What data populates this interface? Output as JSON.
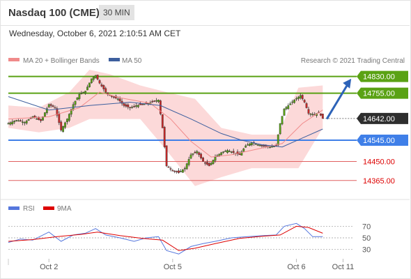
{
  "header": {
    "title": "Nasdaq 100 (CME)",
    "timeframe": "30 MIN",
    "datetime": "Wednesday, October 6, 2021 2:10:51 AM CET"
  },
  "legend": {
    "ma20": "MA 20 + Bollinger Bands",
    "ma50": "MA 50",
    "credit": "Research © 2021 Trading Central"
  },
  "rsi_legend": {
    "rsi": "RSI",
    "ma": "9MA"
  },
  "colors": {
    "green": "#5aa214",
    "blue_support": "#3f7fe8",
    "red_level": "#e06060",
    "current_tag": "#2e2e2e",
    "bollinger_fill": "#fbd2d2",
    "ma50_line": "#3d5f9e",
    "rsi_line": "#5577dd",
    "rsi_ma_line": "#dd0000",
    "arrow": "#2d63b8"
  },
  "chart_data": [
    {
      "type": "candlestick",
      "title": "Nasdaq 100 (CME)",
      "interval": "30 MIN",
      "x_ticks": [
        "Oct 2",
        "Oct 5",
        "Oct 6",
        "Oct 11"
      ],
      "ylim": [
        14330,
        14860
      ],
      "levels": [
        {
          "label": "14830.00",
          "value": 14830,
          "kind": "resistance"
        },
        {
          "label": "14755.00",
          "value": 14755,
          "kind": "resistance"
        },
        {
          "label": "14642.00",
          "value": 14642,
          "kind": "current"
        },
        {
          "label": "14545.00",
          "value": 14545,
          "kind": "support"
        },
        {
          "label": "14450.00",
          "value": 14450,
          "kind": "target"
        },
        {
          "label": "14365.00",
          "value": 14365,
          "kind": "target"
        }
      ],
      "close_path": [
        {
          "t": 0,
          "v": 14620
        },
        {
          "t": 4,
          "v": 14635
        },
        {
          "t": 8,
          "v": 14625
        },
        {
          "t": 12,
          "v": 14650
        },
        {
          "t": 16,
          "v": 14632
        },
        {
          "t": 20,
          "v": 14705
        },
        {
          "t": 23,
          "v": 14690
        },
        {
          "t": 26,
          "v": 14590
        },
        {
          "t": 29,
          "v": 14640
        },
        {
          "t": 32,
          "v": 14705
        },
        {
          "t": 35,
          "v": 14750
        },
        {
          "t": 38,
          "v": 14765
        },
        {
          "t": 41,
          "v": 14820
        },
        {
          "t": 43,
          "v": 14835
        },
        {
          "t": 45,
          "v": 14800
        },
        {
          "t": 48,
          "v": 14760
        },
        {
          "t": 51,
          "v": 14740
        },
        {
          "t": 54,
          "v": 14730
        },
        {
          "t": 57,
          "v": 14700
        },
        {
          "t": 60,
          "v": 14690
        },
        {
          "t": 63,
          "v": 14700
        },
        {
          "t": 66,
          "v": 14705
        },
        {
          "t": 69,
          "v": 14710
        },
        {
          "t": 72,
          "v": 14720
        },
        {
          "t": 74,
          "v": 14725
        },
        {
          "t": 76,
          "v": 14600
        },
        {
          "t": 78,
          "v": 14430
        },
        {
          "t": 81,
          "v": 14410
        },
        {
          "t": 84,
          "v": 14400
        },
        {
          "t": 87,
          "v": 14420
        },
        {
          "t": 90,
          "v": 14480
        },
        {
          "t": 93,
          "v": 14495
        },
        {
          "t": 96,
          "v": 14450
        },
        {
          "t": 99,
          "v": 14430
        },
        {
          "t": 102,
          "v": 14470
        },
        {
          "t": 105,
          "v": 14490
        },
        {
          "t": 108,
          "v": 14500
        },
        {
          "t": 111,
          "v": 14490
        },
        {
          "t": 114,
          "v": 14480
        },
        {
          "t": 117,
          "v": 14520
        },
        {
          "t": 120,
          "v": 14535
        },
        {
          "t": 123,
          "v": 14525
        },
        {
          "t": 126,
          "v": 14520
        },
        {
          "t": 129,
          "v": 14515
        },
        {
          "t": 132,
          "v": 14520
        },
        {
          "t": 134,
          "v": 14620
        },
        {
          "t": 136,
          "v": 14685
        },
        {
          "t": 138,
          "v": 14700
        },
        {
          "t": 141,
          "v": 14725
        },
        {
          "t": 144,
          "v": 14745
        },
        {
          "t": 146,
          "v": 14715
        },
        {
          "t": 148,
          "v": 14665
        },
        {
          "t": 151,
          "v": 14660
        },
        {
          "t": 153,
          "v": 14670
        },
        {
          "t": 155,
          "v": 14642
        }
      ],
      "ma20_path": [
        {
          "t": 0,
          "v": 14640
        },
        {
          "t": 20,
          "v": 14650
        },
        {
          "t": 35,
          "v": 14690
        },
        {
          "t": 45,
          "v": 14760
        },
        {
          "t": 55,
          "v": 14735
        },
        {
          "t": 70,
          "v": 14710
        },
        {
          "t": 80,
          "v": 14640
        },
        {
          "t": 90,
          "v": 14540
        },
        {
          "t": 100,
          "v": 14470
        },
        {
          "t": 110,
          "v": 14480
        },
        {
          "t": 125,
          "v": 14510
        },
        {
          "t": 135,
          "v": 14530
        },
        {
          "t": 145,
          "v": 14620
        },
        {
          "t": 155,
          "v": 14680
        }
      ],
      "ma50_path": [
        {
          "t": 0,
          "v": 14740
        },
        {
          "t": 20,
          "v": 14680
        },
        {
          "t": 40,
          "v": 14700
        },
        {
          "t": 60,
          "v": 14715
        },
        {
          "t": 75,
          "v": 14700
        },
        {
          "t": 90,
          "v": 14640
        },
        {
          "t": 105,
          "v": 14575
        },
        {
          "t": 115,
          "v": 14545
        },
        {
          "t": 125,
          "v": 14525
        },
        {
          "t": 135,
          "v": 14515
        },
        {
          "t": 145,
          "v": 14555
        },
        {
          "t": 155,
          "v": 14595
        }
      ],
      "bollinger_upper": [
        {
          "t": 0,
          "v": 14700
        },
        {
          "t": 15,
          "v": 14690
        },
        {
          "t": 30,
          "v": 14760
        },
        {
          "t": 40,
          "v": 14860
        },
        {
          "t": 50,
          "v": 14840
        },
        {
          "t": 65,
          "v": 14790
        },
        {
          "t": 78,
          "v": 14760
        },
        {
          "t": 92,
          "v": 14730
        },
        {
          "t": 105,
          "v": 14600
        },
        {
          "t": 120,
          "v": 14570
        },
        {
          "t": 133,
          "v": 14570
        },
        {
          "t": 143,
          "v": 14780
        },
        {
          "t": 155,
          "v": 14790
        }
      ],
      "bollinger_lower": [
        {
          "t": 0,
          "v": 14600
        },
        {
          "t": 15,
          "v": 14580
        },
        {
          "t": 30,
          "v": 14600
        },
        {
          "t": 40,
          "v": 14640
        },
        {
          "t": 50,
          "v": 14640
        },
        {
          "t": 65,
          "v": 14640
        },
        {
          "t": 78,
          "v": 14500
        },
        {
          "t": 92,
          "v": 14340
        },
        {
          "t": 105,
          "v": 14380
        },
        {
          "t": 120,
          "v": 14420
        },
        {
          "t": 133,
          "v": 14420
        },
        {
          "t": 143,
          "v": 14420
        },
        {
          "t": 155,
          "v": 14600
        }
      ],
      "forecast_arrow": {
        "from": {
          "t": 157,
          "v": 14640
        },
        "to": {
          "t": 168,
          "v": 14820
        }
      }
    },
    {
      "type": "line",
      "title": "RSI",
      "ylim": [
        15,
        85
      ],
      "y_ticks": [
        70,
        50,
        30
      ],
      "series": [
        {
          "name": "RSI",
          "values": [
            {
              "t": 0,
              "v": 42
            },
            {
              "t": 6,
              "v": 48
            },
            {
              "t": 12,
              "v": 46
            },
            {
              "t": 20,
              "v": 60
            },
            {
              "t": 26,
              "v": 44
            },
            {
              "t": 32,
              "v": 55
            },
            {
              "t": 38,
              "v": 58
            },
            {
              "t": 43,
              "v": 66
            },
            {
              "t": 48,
              "v": 55
            },
            {
              "t": 55,
              "v": 50
            },
            {
              "t": 62,
              "v": 44
            },
            {
              "t": 68,
              "v": 50
            },
            {
              "t": 74,
              "v": 52
            },
            {
              "t": 78,
              "v": 28
            },
            {
              "t": 84,
              "v": 22
            },
            {
              "t": 90,
              "v": 35
            },
            {
              "t": 96,
              "v": 40
            },
            {
              "t": 102,
              "v": 44
            },
            {
              "t": 110,
              "v": 50
            },
            {
              "t": 118,
              "v": 52
            },
            {
              "t": 126,
              "v": 54
            },
            {
              "t": 132,
              "v": 55
            },
            {
              "t": 136,
              "v": 70
            },
            {
              "t": 142,
              "v": 75
            },
            {
              "t": 146,
              "v": 66
            },
            {
              "t": 150,
              "v": 52
            },
            {
              "t": 155,
              "v": 52
            }
          ]
        },
        {
          "name": "9MA",
          "values": [
            {
              "t": 0,
              "v": 44
            },
            {
              "t": 12,
              "v": 47
            },
            {
              "t": 24,
              "v": 52
            },
            {
              "t": 36,
              "v": 56
            },
            {
              "t": 44,
              "v": 60
            },
            {
              "t": 55,
              "v": 54
            },
            {
              "t": 66,
              "v": 49
            },
            {
              "t": 76,
              "v": 46
            },
            {
              "t": 84,
              "v": 28
            },
            {
              "t": 92,
              "v": 32
            },
            {
              "t": 102,
              "v": 40
            },
            {
              "t": 114,
              "v": 49
            },
            {
              "t": 126,
              "v": 53
            },
            {
              "t": 134,
              "v": 55
            },
            {
              "t": 142,
              "v": 70
            },
            {
              "t": 148,
              "v": 68
            },
            {
              "t": 155,
              "v": 58
            }
          ]
        }
      ]
    }
  ]
}
